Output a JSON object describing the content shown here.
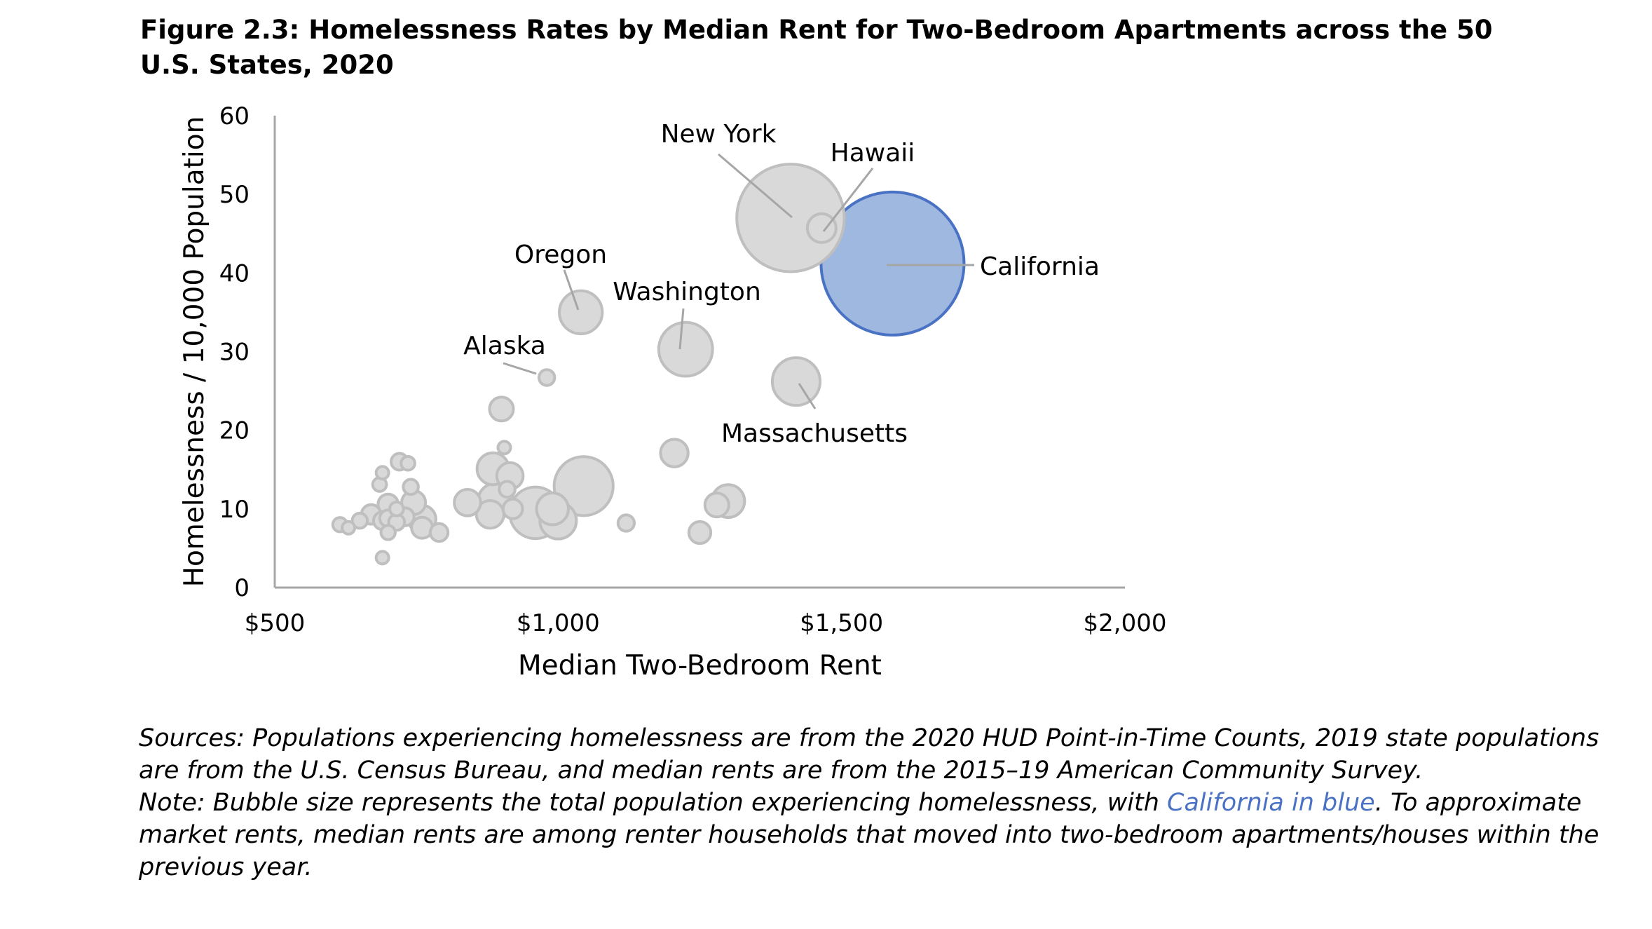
{
  "figure_title": "Figure 2.3: Homelessness Rates by Median Rent for Two-Bedroom Apartments across the 50 U.S. States, 2020",
  "notes": {
    "sources": "Sources: Populations experiencing homelessness are from the 2020 HUD Point-in-Time Counts, 2019 state populations are from the U.S. Census Bureau, and median rents are from the 2015–19 American Community Survey.",
    "note_prefix": "Note: Bubble size represents the total population experiencing homelessness, with ",
    "note_highlight": "California in blue",
    "note_suffix": ". To approximate market rents, median rents are among renter households that moved into two-bedroom apartments/houses within the previous year."
  },
  "chart_data": {
    "type": "scatter",
    "xlabel": "Median Two-Bedroom Rent",
    "ylabel": "Homelessness / 10,000 Population",
    "xlim": [
      500,
      2000
    ],
    "ylim": [
      0,
      60
    ],
    "x_ticks": [
      500,
      1000,
      1500,
      2000
    ],
    "x_tick_labels": [
      "$500",
      "$1,000",
      "$1,500",
      "$2,000"
    ],
    "y_ticks": [
      0,
      10,
      20,
      30,
      40,
      50,
      60
    ],
    "y_tick_labels": [
      "0",
      "10",
      "20",
      "30",
      "40",
      "50",
      "60"
    ],
    "grid": false,
    "legend": "none",
    "size_encoding": "total population experiencing homelessness",
    "colors": {
      "bubble_fill": "#d9d9d9",
      "bubble_stroke": "#bfbfbf",
      "highlight_fill": "#9fb8e0",
      "highlight_stroke": "#4a72c4"
    },
    "points": [
      {
        "label": "California",
        "x": 1590,
        "y": 41.2,
        "size": 161500,
        "highlight": true
      },
      {
        "label": "New York",
        "x": 1410,
        "y": 47.0,
        "size": 91300
      },
      {
        "label": "Hawaii",
        "x": 1465,
        "y": 45.7,
        "size": 6500
      },
      {
        "label": "Oregon",
        "x": 1040,
        "y": 35.0,
        "size": 14600
      },
      {
        "label": "Washington",
        "x": 1225,
        "y": 30.3,
        "size": 22900
      },
      {
        "label": "Alaska",
        "x": 980,
        "y": 26.7,
        "size": 1950
      },
      {
        "label": "Massachusetts",
        "x": 1420,
        "y": 26.2,
        "size": 18000
      },
      {
        "label": "",
        "x": 1045,
        "y": 12.9,
        "size": 27500
      },
      {
        "label": "",
        "x": 960,
        "y": 9.5,
        "size": 21000
      },
      {
        "label": "",
        "x": 1000,
        "y": 8.5,
        "size": 10500
      },
      {
        "label": "",
        "x": 990,
        "y": 10.0,
        "size": 8000
      },
      {
        "label": "",
        "x": 1300,
        "y": 11.0,
        "size": 8500
      },
      {
        "label": "",
        "x": 1280,
        "y": 10.5,
        "size": 4500
      },
      {
        "label": "",
        "x": 1205,
        "y": 17.1,
        "size": 6000
      },
      {
        "label": "",
        "x": 1250,
        "y": 7.0,
        "size": 3800
      },
      {
        "label": "",
        "x": 1120,
        "y": 8.2,
        "size": 2100
      },
      {
        "label": "",
        "x": 900,
        "y": 22.7,
        "size": 4500
      },
      {
        "label": "",
        "x": 905,
        "y": 17.8,
        "size": 1000
      },
      {
        "label": "",
        "x": 885,
        "y": 15.1,
        "size": 8000
      },
      {
        "label": "",
        "x": 915,
        "y": 14.2,
        "size": 5500
      },
      {
        "label": "",
        "x": 890,
        "y": 11.0,
        "size": 10000
      },
      {
        "label": "",
        "x": 880,
        "y": 9.3,
        "size": 6000
      },
      {
        "label": "",
        "x": 910,
        "y": 12.5,
        "size": 2000
      },
      {
        "label": "",
        "x": 920,
        "y": 10.0,
        "size": 3000
      },
      {
        "label": "",
        "x": 840,
        "y": 10.8,
        "size": 5500
      },
      {
        "label": "",
        "x": 720,
        "y": 16.0,
        "size": 2200
      },
      {
        "label": "",
        "x": 735,
        "y": 15.8,
        "size": 1500
      },
      {
        "label": "",
        "x": 690,
        "y": 14.6,
        "size": 1200
      },
      {
        "label": "",
        "x": 740,
        "y": 12.8,
        "size": 1800
      },
      {
        "label": "",
        "x": 685,
        "y": 13.1,
        "size": 1500
      },
      {
        "label": "",
        "x": 700,
        "y": 10.6,
        "size": 3200
      },
      {
        "label": "",
        "x": 745,
        "y": 10.8,
        "size": 4500
      },
      {
        "label": "",
        "x": 760,
        "y": 8.7,
        "size": 6000
      },
      {
        "label": "",
        "x": 760,
        "y": 7.6,
        "size": 3500
      },
      {
        "label": "",
        "x": 790,
        "y": 7.0,
        "size": 2500
      },
      {
        "label": "",
        "x": 730,
        "y": 9.0,
        "size": 2500
      },
      {
        "label": "",
        "x": 715,
        "y": 8.3,
        "size": 2000
      },
      {
        "label": "",
        "x": 690,
        "y": 8.5,
        "size": 2500
      },
      {
        "label": "",
        "x": 670,
        "y": 9.3,
        "size": 3000
      },
      {
        "label": "",
        "x": 700,
        "y": 7.0,
        "size": 1600
      },
      {
        "label": "",
        "x": 700,
        "y": 8.8,
        "size": 2200
      },
      {
        "label": "",
        "x": 615,
        "y": 8.0,
        "size": 1600
      },
      {
        "label": "",
        "x": 630,
        "y": 7.6,
        "size": 900
      },
      {
        "label": "",
        "x": 690,
        "y": 3.8,
        "size": 700
      },
      {
        "label": "",
        "x": 715,
        "y": 10.0,
        "size": 1500
      },
      {
        "label": "",
        "x": 650,
        "y": 8.5,
        "size": 1800
      }
    ]
  }
}
